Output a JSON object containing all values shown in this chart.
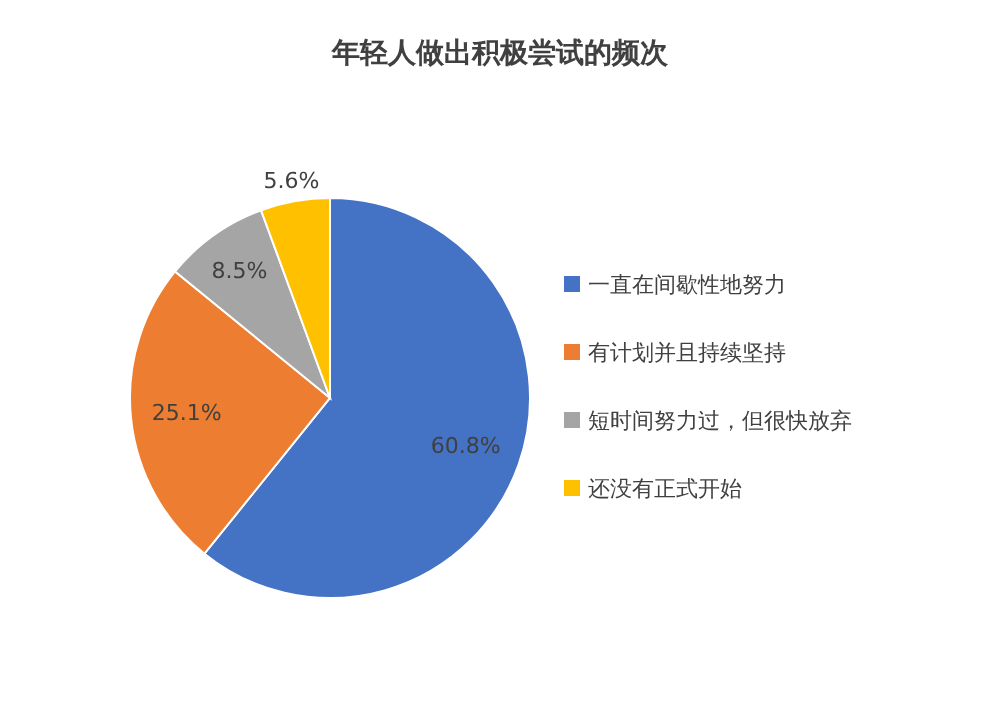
{
  "chart_data": {
    "type": "pie",
    "title": "年轻人做出积极尝试的频次",
    "categories": [
      "一直在间歇性地努力",
      "有计划并且持续坚持",
      "短时间努力过，但很快放弃",
      "还没有正式开始"
    ],
    "values": [
      60.8,
      25.1,
      8.5,
      5.6
    ],
    "value_labels": [
      "60.8%",
      "25.1%",
      "8.5%",
      "5.6%"
    ],
    "colors": [
      "#4472c4",
      "#ed7d31",
      "#a5a5a5",
      "#ffc000"
    ],
    "legend": "right"
  }
}
